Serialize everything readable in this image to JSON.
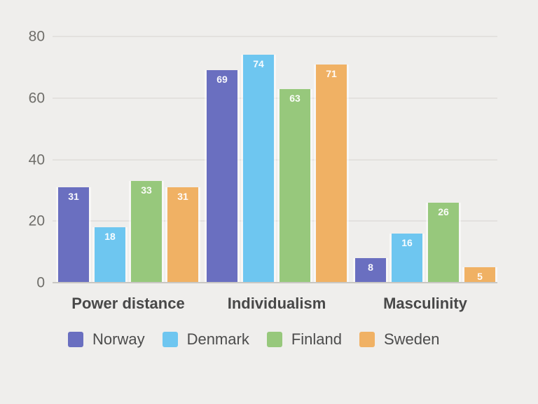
{
  "colors": {
    "background": "#efeeec",
    "gridline": "#e3e1de",
    "axis_line": "#c9c7c3",
    "tick_text": "#6f6e6a",
    "category_text": "#484848",
    "legend_text": "#4c4c4c",
    "value_label_text": "#ffffff"
  },
  "chart_data": {
    "type": "bar",
    "title": "",
    "categories": [
      "Power distance",
      "Individualism",
      "Masculinity"
    ],
    "series": [
      {
        "name": "Norway",
        "color": "#6a6fc0",
        "values": [
          31,
          69,
          8
        ]
      },
      {
        "name": "Denmark",
        "color": "#6ec6f0",
        "values": [
          18,
          74,
          16
        ]
      },
      {
        "name": "Finland",
        "color": "#97c87c",
        "values": [
          33,
          63,
          26
        ]
      },
      {
        "name": "Sweden",
        "color": "#f0b164",
        "values": [
          31,
          71,
          5
        ]
      }
    ],
    "y_ticks": [
      0,
      20,
      40,
      60,
      80
    ],
    "ylim": [
      0,
      80
    ],
    "grid": true,
    "value_labels": true,
    "legend_position": "bottom"
  }
}
